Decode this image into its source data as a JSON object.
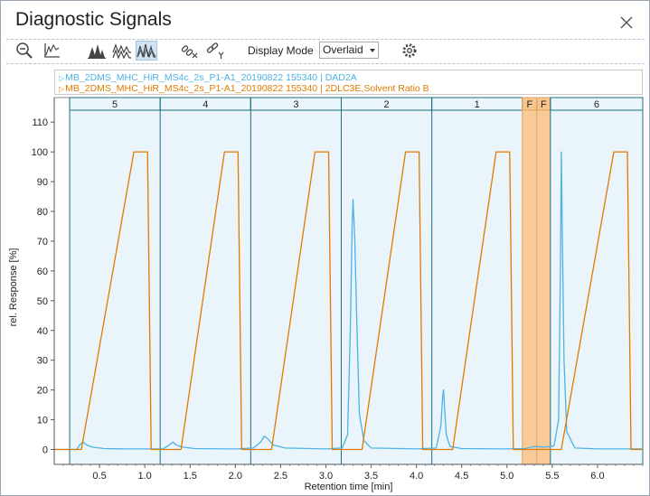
{
  "window": {
    "title": "Diagnostic Signals"
  },
  "toolbar": {
    "display_mode_label": "Display Mode",
    "display_mode_value": "Overlaid",
    "buttons": [
      {
        "name": "zoom-out-icon"
      },
      {
        "name": "axis-scale-icon"
      },
      {
        "name": "stacked-peaks-icon"
      },
      {
        "name": "offset-peaks-icon"
      },
      {
        "name": "overlay-peaks-icon",
        "active": true
      },
      {
        "name": "unlink-x-icon"
      },
      {
        "name": "link-y-icon"
      },
      {
        "name": "gear-icon"
      }
    ]
  },
  "legend": {
    "entries": [
      {
        "text": "MB_2DMS_MHC_HiR_MS4c_2s_P1-A1_20190822 155340 | DAD2A",
        "color": "#4fb3e4"
      },
      {
        "text": "MB_2DMS_MHC_HiR_MS4c_2s_P1-A1_20190822 155340 | 2DLC3E,Solvent Ratio B",
        "color": "#e07b00"
      }
    ]
  },
  "chart_data": {
    "type": "line",
    "xlabel": "Retention time [min]",
    "ylabel": "rel. Response [%]",
    "xlim": [
      0.0,
      6.5
    ],
    "ylim": [
      -5,
      114
    ],
    "x_ticks": [
      0.5,
      1.0,
      1.5,
      2.0,
      2.5,
      3.0,
      3.5,
      4.0,
      4.5,
      5.0,
      5.5,
      6.0
    ],
    "x_tick_labels": [
      "0.5",
      "1.0",
      "1.5",
      "2.0",
      "2.5",
      "3.0",
      "3.5",
      "4.0",
      "4.5",
      "5.0",
      "5.5",
      "6.0"
    ],
    "y_ticks": [
      0,
      10,
      20,
      30,
      40,
      50,
      60,
      70,
      80,
      90,
      100,
      110
    ],
    "y_tick_labels": [
      "0",
      "10",
      "20",
      "30",
      "40",
      "50",
      "60",
      "70",
      "80",
      "90",
      "100",
      "110"
    ],
    "segments": [
      {
        "label": "5",
        "start": 0.17,
        "end": 1.17,
        "color": "#eaf4fb"
      },
      {
        "label": "4",
        "start": 1.17,
        "end": 2.17,
        "color": "#eaf4fb"
      },
      {
        "label": "3",
        "start": 2.17,
        "end": 3.17,
        "color": "#eaf4fb"
      },
      {
        "label": "2",
        "start": 3.17,
        "end": 4.17,
        "color": "#eaf4fb"
      },
      {
        "label": "1",
        "start": 4.17,
        "end": 5.17,
        "color": "#eaf4fb"
      },
      {
        "label": "F",
        "start": 5.17,
        "end": 5.33,
        "color": "#f8c58d"
      },
      {
        "label": "F",
        "start": 5.33,
        "end": 5.48,
        "color": "#f8c58d"
      },
      {
        "label": "6",
        "start": 5.48,
        "end": 6.5,
        "color": "#eaf4fb"
      }
    ],
    "series": [
      {
        "name": "MB_2DMS_MHC_HiR_MS4c_2s_P1-A1_20190822 155340 | DAD2A",
        "color": "#4fb3e4",
        "x": [
          0.0,
          0.25,
          0.28,
          0.32,
          0.36,
          0.42,
          0.55,
          0.8,
          1.0,
          1.2,
          1.27,
          1.31,
          1.35,
          1.42,
          1.55,
          2.0,
          2.2,
          2.28,
          2.32,
          2.36,
          2.42,
          2.55,
          3.0,
          3.18,
          3.24,
          3.27,
          3.29,
          3.3,
          3.32,
          3.34,
          3.37,
          3.42,
          3.5,
          4.0,
          4.22,
          4.27,
          4.29,
          4.3,
          4.31,
          4.33,
          4.37,
          4.5,
          5.0,
          5.2,
          5.3,
          5.42,
          5.52,
          5.57,
          5.59,
          5.6,
          5.61,
          5.63,
          5.66,
          5.75,
          6.0,
          6.5
        ],
        "y": [
          0,
          0,
          1.5,
          2.5,
          1.5,
          0.8,
          0.3,
          0.2,
          0.2,
          0.2,
          1.5,
          2.5,
          1.5,
          0.8,
          0.3,
          0.2,
          0.5,
          2.5,
          4.5,
          3.5,
          1.5,
          0.5,
          0.2,
          0.5,
          5,
          40,
          75,
          84,
          70,
          45,
          12,
          3,
          0.5,
          0.2,
          0.5,
          8,
          18,
          20,
          14,
          5,
          1,
          0.3,
          0.2,
          0.3,
          1,
          0.8,
          1.2,
          10,
          60,
          100,
          75,
          30,
          6,
          0.5,
          0.2,
          0.2
        ]
      },
      {
        "name": "MB_2DMS_MHC_HiR_MS4c_2s_P1-A1_20190822 155340 | 2DLC3E,Solvent Ratio B",
        "color": "#e07b00",
        "x": [
          0.0,
          0.3,
          0.88,
          1.03,
          1.07,
          1.4,
          1.88,
          2.03,
          2.07,
          2.4,
          2.88,
          3.03,
          3.07,
          3.4,
          3.88,
          4.03,
          4.07,
          4.4,
          4.88,
          5.03,
          5.07,
          5.6,
          6.18,
          6.33,
          6.37,
          6.5
        ],
        "y": [
          0,
          0,
          100,
          100,
          0,
          0,
          100,
          100,
          0,
          0,
          100,
          100,
          0,
          0,
          100,
          100,
          0,
          0,
          100,
          100,
          0,
          0,
          100,
          100,
          0,
          0
        ]
      }
    ],
    "legend_position": "top",
    "grid": false
  }
}
